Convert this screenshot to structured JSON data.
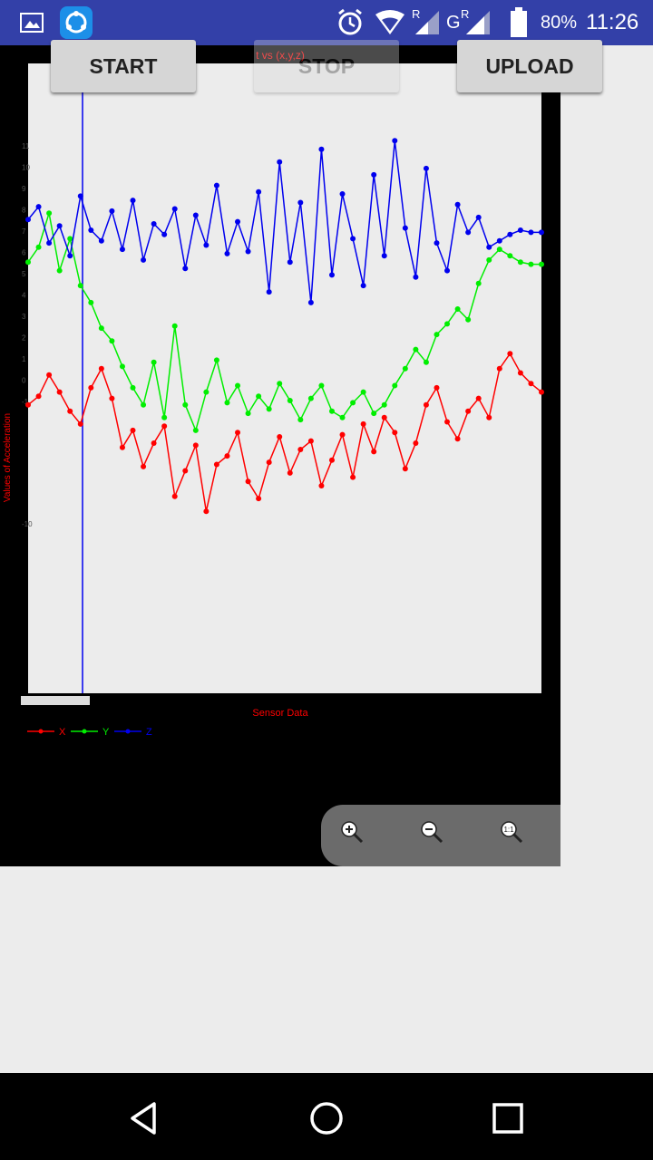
{
  "status_bar": {
    "battery_percent": "80%",
    "time": "11:26",
    "network_r1": "R",
    "network_g": "G",
    "network_r2": "R"
  },
  "buttons": {
    "start": "START",
    "stop": "STOP",
    "upload": "UPLOAD"
  },
  "chart_data": {
    "type": "line",
    "title": "t vs (x,y,z)",
    "xlabel": "Sensor Data",
    "ylabel": "Values of Acceleration",
    "ytick_labels": [
      "11",
      "10",
      "9",
      "8",
      "7",
      "6",
      "5",
      "4",
      "3",
      "2",
      "1",
      "0",
      "-1",
      "-10"
    ],
    "legend": [
      "X",
      "Y",
      "Z"
    ],
    "colors": {
      "X": "#ff0000",
      "Y": "#00ee00",
      "Z": "#0000ee"
    },
    "series": [
      {
        "name": "X",
        "values": [
          -1.2,
          -0.8,
          0.2,
          -0.6,
          -1.5,
          -2.1,
          -0.4,
          0.5,
          -0.9,
          -3.2,
          -2.4,
          -4.1,
          -3.0,
          -2.2,
          -5.5,
          -4.3,
          -3.1,
          -6.2,
          -4.0,
          -3.6,
          -2.5,
          -4.8,
          -5.6,
          -3.9,
          -2.7,
          -4.4,
          -3.3,
          -2.9,
          -5.0,
          -3.8,
          -2.6,
          -4.6,
          -2.1,
          -3.4,
          -1.8,
          -2.5,
          -4.2,
          -3.0,
          -1.2,
          -0.4,
          -2.0,
          -2.8,
          -1.5,
          -0.9,
          -1.8,
          0.5,
          1.2,
          0.3,
          -0.2,
          -0.6
        ]
      },
      {
        "name": "Y",
        "values": [
          5.5,
          6.2,
          7.8,
          5.1,
          6.6,
          4.4,
          3.6,
          2.4,
          1.8,
          0.6,
          -0.4,
          -1.2,
          0.8,
          -1.8,
          2.5,
          -1.2,
          -2.4,
          -0.6,
          0.9,
          -1.1,
          -0.3,
          -1.6,
          -0.8,
          -1.4,
          -0.2,
          -1.0,
          -1.9,
          -0.9,
          -0.3,
          -1.5,
          -1.8,
          -1.1,
          -0.6,
          -1.6,
          -1.2,
          -0.3,
          0.5,
          1.4,
          0.8,
          2.1,
          2.6,
          3.3,
          2.8,
          4.5,
          5.6,
          6.1,
          5.8,
          5.5,
          5.4,
          5.4
        ]
      },
      {
        "name": "Z",
        "values": [
          7.5,
          8.1,
          6.4,
          7.2,
          5.8,
          8.6,
          7.0,
          6.5,
          7.9,
          6.1,
          8.4,
          5.6,
          7.3,
          6.8,
          8.0,
          5.2,
          7.7,
          6.3,
          9.1,
          5.9,
          7.4,
          6.0,
          8.8,
          4.1,
          10.2,
          5.5,
          8.3,
          3.6,
          10.8,
          4.9,
          8.7,
          6.6,
          4.4,
          9.6,
          5.8,
          11.2,
          7.1,
          4.8,
          9.9,
          6.4,
          5.1,
          8.2,
          6.9,
          7.6,
          6.2,
          6.5,
          6.8,
          7.0,
          6.9,
          6.9
        ]
      }
    ]
  },
  "zoom_controls": {
    "zoom_in": "zoom-in",
    "zoom_out": "zoom-out",
    "reset": "1:1"
  }
}
